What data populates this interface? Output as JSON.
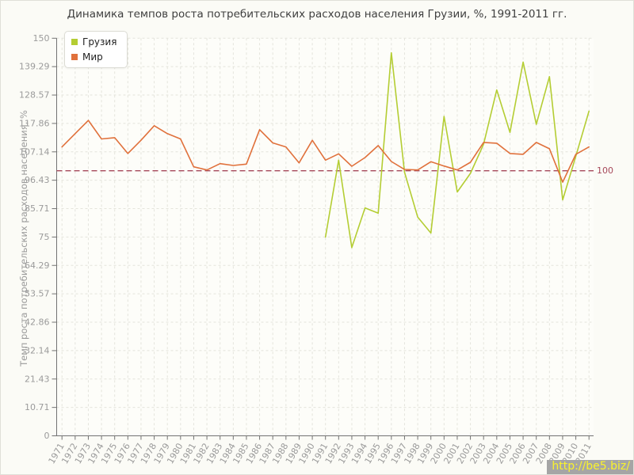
{
  "title": "Динамика темпов роста потребительских расходов населения Грузии, %, 1991-2011 гг.",
  "y_axis": {
    "label": "Темп роста потребительских расходов населения, %"
  },
  "legend": {
    "items": [
      {
        "label": "Грузия",
        "color": "#b4cd33"
      },
      {
        "label": "Мир",
        "color": "#e0713c"
      }
    ]
  },
  "reference_line": {
    "label": "100",
    "value": 100,
    "color": "#a6485a"
  },
  "watermark": {
    "text": "http://be5.biz/",
    "bg": "#a5a5a5",
    "fg": "#faf32b"
  },
  "chart_data": {
    "type": "line",
    "title": "Динамика темпов роста потребительских расходов населения Грузии, %, 1991-2011 гг.",
    "xlabel": "",
    "ylabel": "Темп роста потребительских расходов населения, %",
    "ylim": [
      0,
      150
    ],
    "x_range": [
      1971,
      2011
    ],
    "grid": true,
    "legend_position": "top-left",
    "reference_line_y": 100,
    "y_ticks": [
      {
        "label": "0",
        "value": 0
      },
      {
        "label": "10.71",
        "value": 10.71
      },
      {
        "label": "21.43",
        "value": 21.43
      },
      {
        "label": "32.14",
        "value": 32.14
      },
      {
        "label": "42.86",
        "value": 42.86
      },
      {
        "label": "53.57",
        "value": 53.57
      },
      {
        "label": "64.29",
        "value": 64.29
      },
      {
        "label": "75",
        "value": 75
      },
      {
        "label": "85.71",
        "value": 85.71
      },
      {
        "label": "96.43",
        "value": 96.43
      },
      {
        "label": "107.14",
        "value": 107.14
      },
      {
        "label": "117.86",
        "value": 117.86
      },
      {
        "label": "128.57",
        "value": 128.57
      },
      {
        "label": "139.29",
        "value": 139.29
      },
      {
        "label": "150",
        "value": 150
      }
    ],
    "x_ticks": [
      1971,
      1972,
      1973,
      1974,
      1975,
      1976,
      1977,
      1978,
      1979,
      1980,
      1981,
      1982,
      1983,
      1984,
      1985,
      1986,
      1987,
      1988,
      1989,
      1990,
      1991,
      1992,
      1993,
      1994,
      1995,
      1996,
      1997,
      1998,
      1999,
      2000,
      2001,
      2002,
      2003,
      2004,
      2005,
      2006,
      2007,
      2008,
      2009,
      2010,
      2011
    ],
    "series": [
      {
        "name": "Грузия",
        "color": "#b4cd33",
        "start_year": 1991,
        "values": [
          75,
          104,
          71,
          86,
          84,
          144.5,
          99.5,
          82.5,
          76.5,
          120.5,
          92,
          99,
          110,
          130.5,
          114.5,
          141,
          117.5,
          135.5,
          89,
          105.5,
          122.5
        ]
      },
      {
        "name": "Мир",
        "color": "#e0713c",
        "start_year": 1971,
        "values": [
          109,
          114,
          119,
          112,
          112.5,
          106.5,
          111.5,
          117,
          114,
          112,
          101.5,
          100.3,
          102.7,
          102,
          102.5,
          115.5,
          110.5,
          109,
          103,
          111.5,
          104,
          106.4,
          101.7,
          105,
          109.5,
          103.5,
          100.5,
          100.3,
          103.4,
          101.8,
          100.3,
          103.2,
          110.7,
          110.4,
          106.5,
          106.2,
          110.7,
          108.3,
          95.7,
          106.2,
          109
        ]
      }
    ]
  }
}
